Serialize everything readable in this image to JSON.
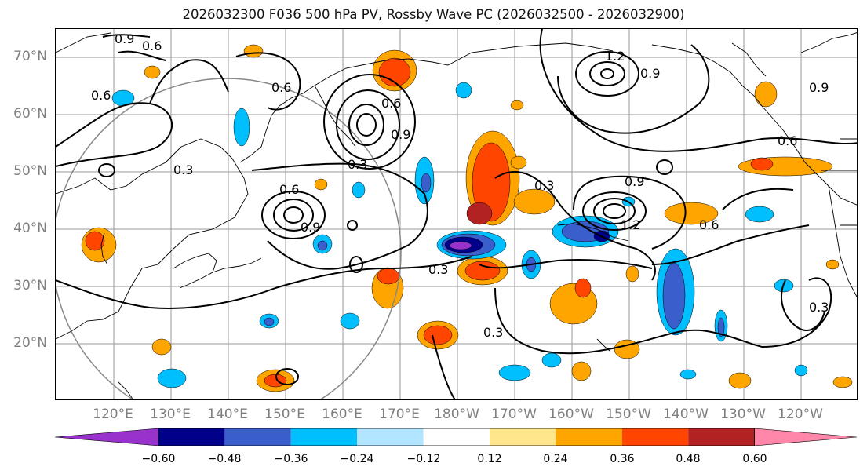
{
  "title": "2026032300 F036 500 hPa PV, Rossby Wave PC (2026032500 - 2026032900)",
  "lat_labels": [
    "70°N",
    "60°N",
    "50°N",
    "40°N",
    "30°N",
    "20°N"
  ],
  "lon_labels": [
    "120°E",
    "130°E",
    "140°E",
    "150°E",
    "160°E",
    "170°E",
    "180°W",
    "170°W",
    "160°W",
    "150°W",
    "140°W",
    "130°W",
    "120°W"
  ],
  "contour_labels": [
    "0.6",
    "0.9",
    "0.6",
    "0.6",
    "0.6",
    "0.9",
    "0.3",
    "0.6",
    "0.9",
    "0.3",
    "0.3",
    "0.9",
    "1.2",
    "0.9",
    "0.6",
    "1.2",
    "0.6",
    "0.3",
    "0.3",
    "0.9",
    "0.3"
  ],
  "colorbar": {
    "ticks": [
      "−0.60",
      "−0.48",
      "−0.36",
      "−0.24",
      "−0.12",
      "0.12",
      "0.24",
      "0.36",
      "0.48",
      "0.60"
    ],
    "colors": [
      "#9932cc",
      "#00008b",
      "#3a5fcd",
      "#00bfff",
      "#b2e5ff",
      "#ffffff",
      "#ffe68c",
      "#ffa500",
      "#ff4500",
      "#b22222",
      "#ff88aa"
    ]
  },
  "fill_colors": {
    "neg1": "#b2e5ff",
    "neg2": "#00bfff",
    "neg3": "#3a5fcd",
    "neg4": "#00008b",
    "neg5": "#9932cc",
    "pos1": "#ffe68c",
    "pos2": "#ffa500",
    "pos3": "#ff4500",
    "pos4": "#b22222"
  }
}
